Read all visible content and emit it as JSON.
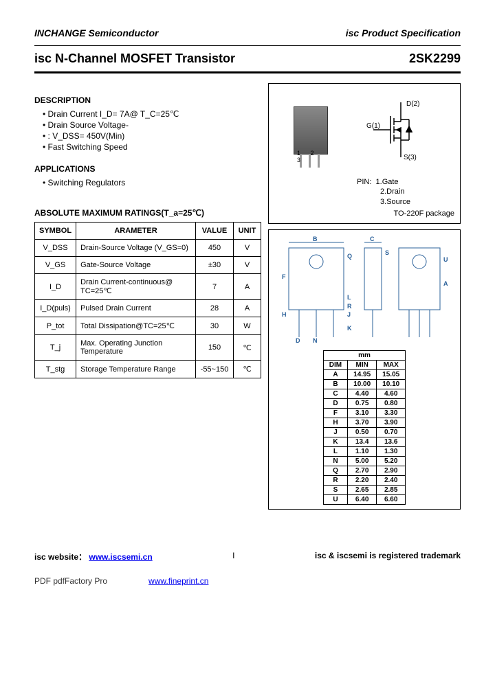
{
  "header": {
    "company": "INCHANGE Semiconductor",
    "doc_type": "isc Product Specification"
  },
  "title": {
    "product": "isc N-Channel MOSFET Transistor",
    "part_no": "2SK2299"
  },
  "description": {
    "heading": "DESCRIPTION",
    "items": [
      "Drain Current   I_D= 7A@ T_C=25℃",
      "Drain Source Voltage-",
      ": V_DSS= 450V(Min)",
      "Fast Switching Speed"
    ]
  },
  "applications": {
    "heading": "APPLICATIONS",
    "items": [
      "Switching Regulators"
    ]
  },
  "pin_info": {
    "label": "PIN:",
    "pins": [
      "1.Gate",
      "2.Drain",
      "3.Source"
    ],
    "symbol": {
      "D": "D(2)",
      "G": "G(1)",
      "S": "S(3)"
    },
    "package": "TO-220F package"
  },
  "ratings": {
    "heading": "ABSOLUTE MAXIMUM RATINGS(T_a=25℃)",
    "columns": [
      "SYMBOL",
      "ARAMETER",
      "VALUE",
      "UNIT"
    ],
    "rows": [
      {
        "sym": "V_DSS",
        "param": "Drain-Source Voltage (V_GS=0)",
        "val": "450",
        "unit": "V"
      },
      {
        "sym": "V_GS",
        "param": "Gate-Source Voltage",
        "val": "±30",
        "unit": "V"
      },
      {
        "sym": "I_D",
        "param": "Drain Current-continuous@ TC=25℃",
        "val": "7",
        "unit": "A"
      },
      {
        "sym": "I_D(puls)",
        "param": "Pulsed Drain Current",
        "val": "28",
        "unit": "A"
      },
      {
        "sym": "P_tot",
        "param": "Total Dissipation@TC=25℃",
        "val": "30",
        "unit": "W"
      },
      {
        "sym": "T_j",
        "param": "Max. Operating Junction Temperature",
        "val": "150",
        "unit": "℃"
      },
      {
        "sym": "T_stg",
        "param": "Storage Temperature Range",
        "val": "-55~150",
        "unit": "℃"
      }
    ]
  },
  "dimensions": {
    "unit_header": "mm",
    "columns": [
      "DIM",
      "MIN",
      "MAX"
    ],
    "rows": [
      [
        "A",
        "14.95",
        "15.05"
      ],
      [
        "B",
        "10.00",
        "10.10"
      ],
      [
        "C",
        "4.40",
        "4.60"
      ],
      [
        "D",
        "0.75",
        "0.80"
      ],
      [
        "F",
        "3.10",
        "3.30"
      ],
      [
        "H",
        "3.70",
        "3.90"
      ],
      [
        "J",
        "0.50",
        "0.70"
      ],
      [
        "K",
        "13.4",
        "13.6"
      ],
      [
        "L",
        "1.10",
        "1.30"
      ],
      [
        "N",
        "5.00",
        "5.20"
      ],
      [
        "Q",
        "2.70",
        "2.90"
      ],
      [
        "R",
        "2.20",
        "2.40"
      ],
      [
        "S",
        "2.65",
        "2.85"
      ],
      [
        "U",
        "6.40",
        "6.60"
      ]
    ],
    "drawing_labels": [
      "B",
      "C",
      "S",
      "Q",
      "U",
      "F",
      "A",
      "L",
      "H",
      "J",
      "R",
      "K",
      "D",
      "N"
    ]
  },
  "footer": {
    "website_label": "isc website：",
    "website_url": "www.iscsemi.cn",
    "trademark": "isc & iscsemi is registered trademark",
    "page": "I"
  },
  "pdf_footer": {
    "label": "PDF  pdfFactory Pro",
    "url": "www.fineprint.cn"
  },
  "colors": {
    "text": "#000000",
    "link": "#0000ee",
    "drawing_stroke": "#2a6099",
    "package_fill": "#888888"
  }
}
